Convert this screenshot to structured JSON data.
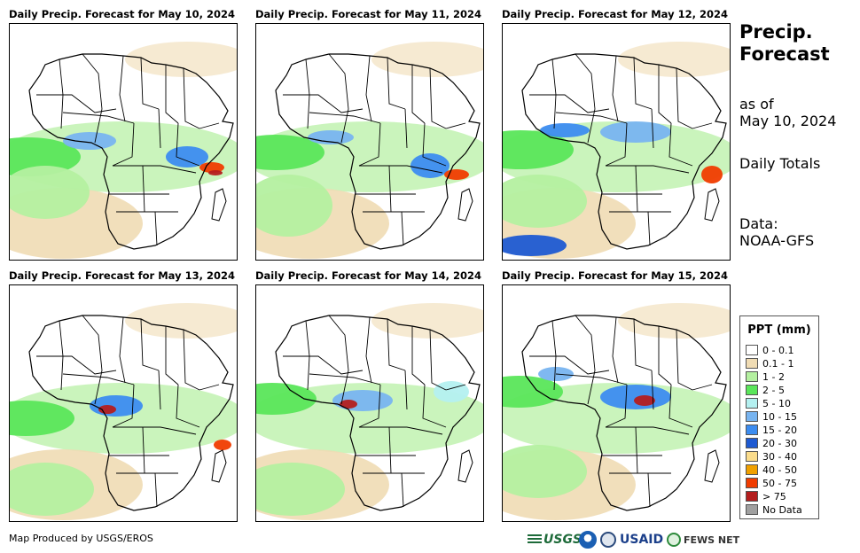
{
  "panels": [
    {
      "title": "Daily Precip. Forecast for May 10, 2024",
      "date": "May 10, 2024"
    },
    {
      "title": "Daily Precip. Forecast for May 11, 2024",
      "date": "May 11, 2024"
    },
    {
      "title": "Daily Precip. Forecast for May 12, 2024",
      "date": "May 12, 2024"
    },
    {
      "title": "Daily Precip. Forecast for May 13, 2024",
      "date": "May 13, 2024"
    },
    {
      "title": "Daily Precip. Forecast for May 14, 2024",
      "date": "May 14, 2024"
    },
    {
      "title": "Daily Precip. Forecast for May 15, 2024",
      "date": "May 15, 2024"
    }
  ],
  "sidebar": {
    "title_line1": "Precip.",
    "title_line2": "Forecast",
    "asof_line1": "as of",
    "asof_line2": "May 10, 2024",
    "totals": "Daily Totals",
    "data_line1": "Data:",
    "data_line2": "NOAA-GFS"
  },
  "legend": {
    "title": "PPT (mm)",
    "items": [
      {
        "label": "0 - 0.1",
        "color": "#ffffff"
      },
      {
        "label": "0.1 - 1",
        "color": "#f0dcb4"
      },
      {
        "label": "1 - 2",
        "color": "#b4f0a0"
      },
      {
        "label": "2 - 5",
        "color": "#5ae65a"
      },
      {
        "label": "5 - 10",
        "color": "#b4f0f0"
      },
      {
        "label": "10 - 15",
        "color": "#78b4f0"
      },
      {
        "label": "15 - 20",
        "color": "#3c8cf0"
      },
      {
        "label": "20 - 30",
        "color": "#1e5ad2"
      },
      {
        "label": "30 - 40",
        "color": "#fadc8c"
      },
      {
        "label": "40 - 50",
        "color": "#f0a000"
      },
      {
        "label": "50 - 75",
        "color": "#f03c00"
      },
      {
        "label": "> 75",
        "color": "#b41e1e"
      },
      {
        "label": "No Data",
        "color": "#a0a0a0"
      }
    ]
  },
  "footer": {
    "credit": "Map Produced by USGS/EROS",
    "logos": [
      "USGS",
      "USAID",
      "FEWS NET"
    ]
  }
}
